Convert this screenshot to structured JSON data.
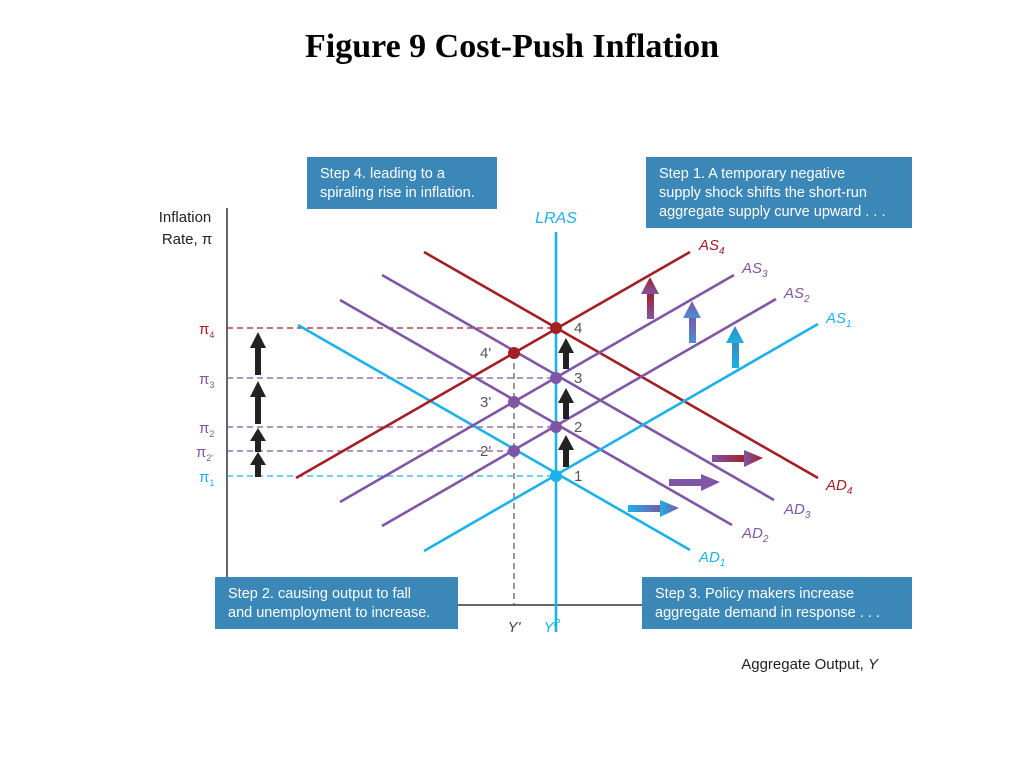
{
  "title": "Figure 9  Cost-Push Inflation",
  "axes": {
    "y_label_line1": "Inflation",
    "y_label_line2": "Rate, π",
    "x_label": "Aggregate Output, ",
    "x_label_var": "Y"
  },
  "output_ticks": {
    "y_prime": "Y'",
    "y_p": "Y",
    "y_p_sup": "P"
  },
  "lras_label": "LRAS",
  "pi_labels": [
    {
      "base": "π",
      "sub": "4"
    },
    {
      "base": "π",
      "sub": "3"
    },
    {
      "base": "π",
      "sub": "2"
    },
    {
      "base": "π",
      "sub": "2'"
    },
    {
      "base": "π",
      "sub": "1"
    }
  ],
  "curves": {
    "as1": {
      "base": "AS",
      "sub": "1"
    },
    "as2": {
      "base": "AS",
      "sub": "2"
    },
    "as3": {
      "base": "AS",
      "sub": "3"
    },
    "as4": {
      "base": "AS",
      "sub": "4"
    },
    "ad1": {
      "base": "AD",
      "sub": "1"
    },
    "ad2": {
      "base": "AD",
      "sub": "2"
    },
    "ad3": {
      "base": "AD",
      "sub": "3"
    },
    "ad4": {
      "base": "AD",
      "sub": "4"
    }
  },
  "points": {
    "p1": "1",
    "p2": "2",
    "p3": "3",
    "p4": "4",
    "p2p": "2'",
    "p3p": "3'",
    "p4p": "4'"
  },
  "steps": {
    "step1": [
      "Step 1. A temporary negative",
      "supply shock shifts the short-run",
      "aggregate supply curve upward . . ."
    ],
    "step2": [
      "Step 2. causing output to fall",
      "and unemployment to increase."
    ],
    "step3": [
      "Step 3. Policy makers increase",
      "aggregate demand in response . . ."
    ],
    "step4": [
      "Step 4. leading to a",
      "spiraling rise in inflation."
    ]
  },
  "colors": {
    "cyan": "#1ab2e8",
    "purple": "#7f55a5",
    "darkred": "#a31f24",
    "box": "#3a87b8",
    "axis": "#333333"
  }
}
